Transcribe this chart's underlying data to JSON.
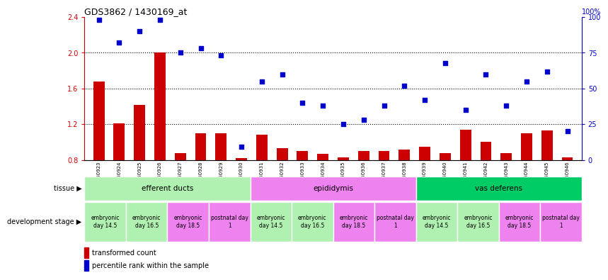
{
  "title": "GDS3862 / 1430169_at",
  "samples": [
    "GSM560923",
    "GSM560924",
    "GSM560925",
    "GSM560926",
    "GSM560927",
    "GSM560928",
    "GSM560929",
    "GSM560930",
    "GSM560931",
    "GSM560932",
    "GSM560933",
    "GSM560934",
    "GSM560935",
    "GSM560936",
    "GSM560937",
    "GSM560938",
    "GSM560939",
    "GSM560940",
    "GSM560941",
    "GSM560942",
    "GSM560943",
    "GSM560944",
    "GSM560945",
    "GSM560946"
  ],
  "bar_values": [
    1.68,
    1.21,
    1.42,
    2.0,
    0.88,
    1.1,
    1.1,
    0.82,
    1.08,
    0.93,
    0.9,
    0.87,
    0.83,
    0.9,
    0.9,
    0.92,
    0.95,
    0.88,
    1.14,
    1.0,
    0.88,
    1.1,
    1.13,
    0.83
  ],
  "scatter_values": [
    98,
    82,
    90,
    98,
    75,
    78,
    73,
    9,
    55,
    60,
    40,
    38,
    25,
    28,
    38,
    52,
    42,
    68,
    35,
    60,
    38,
    55,
    62,
    20
  ],
  "bar_color": "#cc0000",
  "scatter_color": "#0000cc",
  "ylim_left": [
    0.8,
    2.4
  ],
  "ylim_right": [
    0,
    100
  ],
  "yticks_left": [
    0.8,
    1.2,
    1.6,
    2.0,
    2.4
  ],
  "yticks_right": [
    0,
    25,
    50,
    75,
    100
  ],
  "tissue_groups": [
    {
      "label": "efferent ducts",
      "start": 0,
      "end": 8,
      "color": "#b0f0b0"
    },
    {
      "label": "epididymis",
      "start": 8,
      "end": 16,
      "color": "#ee82ee"
    },
    {
      "label": "vas deferens",
      "start": 16,
      "end": 24,
      "color": "#00cc66"
    }
  ],
  "dev_stage_groups": [
    {
      "label": "embryonic\nday 14.5",
      "start": 0,
      "end": 2,
      "color": "#b0f0b0"
    },
    {
      "label": "embryonic\nday 16.5",
      "start": 2,
      "end": 4,
      "color": "#b0f0b0"
    },
    {
      "label": "embryonic\nday 18.5",
      "start": 4,
      "end": 6,
      "color": "#ee82ee"
    },
    {
      "label": "postnatal day\n1",
      "start": 6,
      "end": 8,
      "color": "#ee82ee"
    },
    {
      "label": "embryonic\nday 14.5",
      "start": 8,
      "end": 10,
      "color": "#b0f0b0"
    },
    {
      "label": "embryonic\nday 16.5",
      "start": 10,
      "end": 12,
      "color": "#b0f0b0"
    },
    {
      "label": "embryonic\nday 18.5",
      "start": 12,
      "end": 14,
      "color": "#ee82ee"
    },
    {
      "label": "postnatal day\n1",
      "start": 14,
      "end": 16,
      "color": "#ee82ee"
    },
    {
      "label": "embryonic\nday 14.5",
      "start": 16,
      "end": 18,
      "color": "#b0f0b0"
    },
    {
      "label": "embryonic\nday 16.5",
      "start": 18,
      "end": 20,
      "color": "#b0f0b0"
    },
    {
      "label": "embryonic\nday 18.5",
      "start": 20,
      "end": 22,
      "color": "#ee82ee"
    },
    {
      "label": "postnatal day\n1",
      "start": 22,
      "end": 24,
      "color": "#ee82ee"
    }
  ],
  "legend_bar_label": "transformed count",
  "legend_scatter_label": "percentile rank within the sample",
  "tissue_label": "tissue",
  "dev_stage_label": "development stage",
  "bg_color": "#e8e8e8"
}
